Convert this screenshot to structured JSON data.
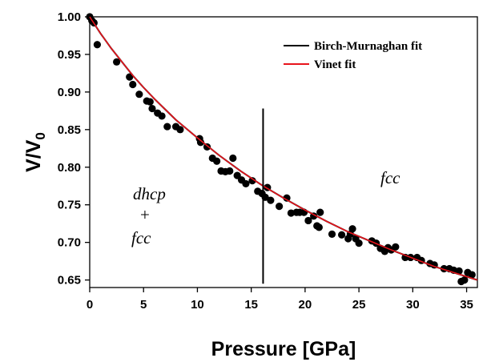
{
  "chart_data": {
    "type": "scatter",
    "title": "",
    "xlabel": "Pressure [GPa]",
    "ylabel": {
      "main": "V/V",
      "sub": "0"
    },
    "xlim": [
      0,
      36
    ],
    "ylim": [
      0.64,
      1.0
    ],
    "x_ticks": [
      0,
      5,
      10,
      15,
      20,
      25,
      30,
      35
    ],
    "y_ticks": [
      0.65,
      0.7,
      0.75,
      0.8,
      0.85,
      0.9,
      0.95,
      1.0
    ],
    "y_tick_labels": [
      "0.65",
      "0.70",
      "0.75",
      "0.80",
      "0.85",
      "0.90",
      "0.95",
      "1.00"
    ],
    "grid": false,
    "legend_position": "top-right",
    "series": [
      {
        "name": "Birch-Murnaghan fit",
        "kind": "line",
        "color": "#000000",
        "x": [
          0,
          1,
          2,
          3,
          4,
          5,
          6,
          7,
          8,
          9,
          10,
          12,
          14,
          16,
          18,
          20,
          22,
          24,
          26,
          28,
          30,
          32,
          34,
          36
        ],
        "y": [
          1.0,
          0.978,
          0.958,
          0.94,
          0.922,
          0.906,
          0.891,
          0.877,
          0.863,
          0.851,
          0.839,
          0.816,
          0.795,
          0.776,
          0.759,
          0.743,
          0.728,
          0.714,
          0.702,
          0.69,
          0.679,
          0.668,
          0.659,
          0.65
        ]
      },
      {
        "name": "Vinet fit",
        "kind": "line",
        "color": "#e8141c",
        "x": [
          0,
          1,
          2,
          3,
          4,
          5,
          6,
          7,
          8,
          9,
          10,
          12,
          14,
          16,
          18,
          20,
          22,
          24,
          26,
          28,
          30,
          32,
          34,
          36
        ],
        "y": [
          1.0,
          0.978,
          0.958,
          0.94,
          0.922,
          0.906,
          0.891,
          0.877,
          0.863,
          0.851,
          0.839,
          0.816,
          0.795,
          0.776,
          0.759,
          0.743,
          0.728,
          0.714,
          0.702,
          0.69,
          0.679,
          0.668,
          0.659,
          0.65
        ]
      },
      {
        "kind": "scatter",
        "color": "#000000",
        "points": [
          [
            0.0,
            1.0
          ],
          [
            0.2,
            0.995
          ],
          [
            0.4,
            0.992
          ],
          [
            0.7,
            0.963
          ],
          [
            2.5,
            0.94
          ],
          [
            3.7,
            0.92
          ],
          [
            4.0,
            0.91
          ],
          [
            4.6,
            0.897
          ],
          [
            5.3,
            0.888
          ],
          [
            5.6,
            0.887
          ],
          [
            5.8,
            0.878
          ],
          [
            6.3,
            0.872
          ],
          [
            6.7,
            0.868
          ],
          [
            7.2,
            0.854
          ],
          [
            8.0,
            0.854
          ],
          [
            8.4,
            0.85
          ],
          [
            10.2,
            0.838
          ],
          [
            10.3,
            0.833
          ],
          [
            10.9,
            0.827
          ],
          [
            11.4,
            0.812
          ],
          [
            11.8,
            0.808
          ],
          [
            12.2,
            0.795
          ],
          [
            12.6,
            0.794
          ],
          [
            13.0,
            0.795
          ],
          [
            13.3,
            0.812
          ],
          [
            13.7,
            0.789
          ],
          [
            14.1,
            0.783
          ],
          [
            14.5,
            0.778
          ],
          [
            15.1,
            0.782
          ],
          [
            15.6,
            0.768
          ],
          [
            16.0,
            0.765
          ],
          [
            16.3,
            0.76
          ],
          [
            16.5,
            0.773
          ],
          [
            16.8,
            0.756
          ],
          [
            17.6,
            0.748
          ],
          [
            18.3,
            0.759
          ],
          [
            18.7,
            0.739
          ],
          [
            19.2,
            0.74
          ],
          [
            19.5,
            0.74
          ],
          [
            19.9,
            0.74
          ],
          [
            20.3,
            0.729
          ],
          [
            20.8,
            0.735
          ],
          [
            21.1,
            0.722
          ],
          [
            21.3,
            0.72
          ],
          [
            21.4,
            0.74
          ],
          [
            22.5,
            0.711
          ],
          [
            23.4,
            0.71
          ],
          [
            24.0,
            0.705
          ],
          [
            24.2,
            0.711
          ],
          [
            24.4,
            0.718
          ],
          [
            24.7,
            0.705
          ],
          [
            25.0,
            0.699
          ],
          [
            26.2,
            0.702
          ],
          [
            26.6,
            0.699
          ],
          [
            27.0,
            0.692
          ],
          [
            27.4,
            0.688
          ],
          [
            27.7,
            0.693
          ],
          [
            28.0,
            0.69
          ],
          [
            28.4,
            0.694
          ],
          [
            29.3,
            0.68
          ],
          [
            29.8,
            0.68
          ],
          [
            30.4,
            0.68
          ],
          [
            30.8,
            0.676
          ],
          [
            31.6,
            0.672
          ],
          [
            32.0,
            0.67
          ],
          [
            32.9,
            0.665
          ],
          [
            33.4,
            0.665
          ],
          [
            33.8,
            0.663
          ],
          [
            34.3,
            0.662
          ],
          [
            34.5,
            0.648
          ],
          [
            34.8,
            0.65
          ],
          [
            35.1,
            0.66
          ],
          [
            35.5,
            0.657
          ]
        ]
      }
    ],
    "vertical_line": {
      "x": 16.1,
      "y_from": 0.645,
      "y_to": 0.878,
      "color": "#000000"
    },
    "annotations": {
      "left_phase_1": "dhcp",
      "left_phase_plus": "+",
      "left_phase_2": "fcc",
      "right_phase": "fcc"
    }
  }
}
